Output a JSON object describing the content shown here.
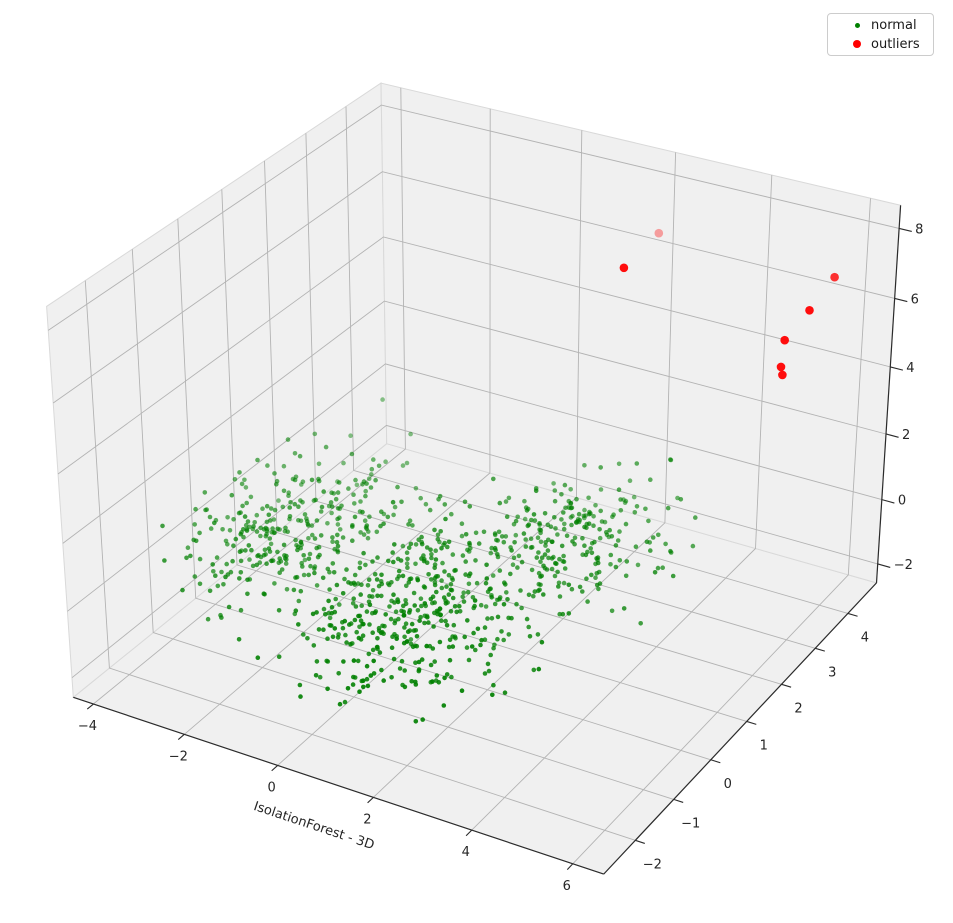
{
  "chart_data": {
    "type": "scatter",
    "projection": "3d",
    "title": "",
    "xlabel": "IsolationForest - 3D",
    "ylabel": "",
    "zlabel": "",
    "view": {
      "elev": 30,
      "azim": -60
    },
    "axes": {
      "xlim": [
        -4.45,
        6.6
      ],
      "ylim": [
        -2.8,
        4.9
      ],
      "zlim": [
        -2.6,
        8.65
      ],
      "x_ticks": [
        -4,
        -2,
        0,
        2,
        4,
        6
      ],
      "y_ticks": [
        -2,
        -1,
        0,
        1,
        2,
        3,
        4
      ],
      "z_ticks": [
        -2,
        0,
        2,
        4,
        6,
        8
      ],
      "grid": true
    },
    "series": [
      {
        "name": "normal",
        "color": "#008000",
        "marker_radius_px": 2.3,
        "count": 1000,
        "seed": 7,
        "clusters": [
          {
            "center": [
              -2.6,
              0.45,
              -0.1
            ],
            "std": [
              0.85,
              0.95,
              0.55
            ],
            "n": 300
          },
          {
            "center": [
              0.9,
              -0.45,
              -0.1
            ],
            "std": [
              1.05,
              1.0,
              0.6
            ],
            "n": 450
          },
          {
            "center": [
              2.2,
              2.0,
              0.0
            ],
            "std": [
              0.8,
              0.85,
              0.55
            ],
            "n": 250
          }
        ]
      },
      {
        "name": "outliers",
        "color": "#ff0000",
        "marker_radius_px": 4.3,
        "points": [
          {
            "x": 2.9,
            "y": 3.25,
            "z": 8.0,
            "opacity": 0.35
          },
          {
            "x": 2.35,
            "y": 3.05,
            "z": 7.0,
            "opacity": 0.95
          },
          {
            "x": 5.85,
            "y": 4.15,
            "z": 7.0,
            "opacity": 0.8
          },
          {
            "x": 5.45,
            "y": 4.05,
            "z": 6.0,
            "opacity": 0.95
          },
          {
            "x": 5.0,
            "y": 4.02,
            "z": 5.0,
            "opacity": 0.95
          },
          {
            "x": 4.95,
            "y": 4.02,
            "z": 4.2,
            "opacity": 0.95
          },
          {
            "x": 5.0,
            "y": 4.0,
            "z": 4.0,
            "opacity": 0.95
          }
        ]
      }
    ]
  },
  "legend": {
    "items": [
      {
        "label": "normal",
        "color": "#008000"
      },
      {
        "label": "outliers",
        "color": "#ff0000"
      }
    ]
  },
  "colors": {
    "background": "#ffffff",
    "pane": "#f0f0f0",
    "pane_edge": "#d9d9d9",
    "grid": "#b3b3b3",
    "axis_line": "#2b2b2b",
    "tick_label": "#262626"
  }
}
